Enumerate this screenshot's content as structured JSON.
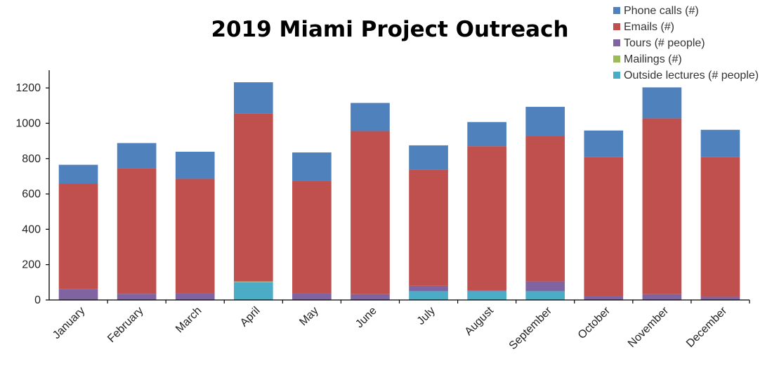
{
  "chart_data": {
    "type": "bar",
    "stacked": true,
    "title": "2019 Miami Project Outreach",
    "xlabel": "",
    "ylabel": "",
    "ylim": [
      0,
      1300
    ],
    "yticks": [
      0,
      200,
      400,
      600,
      800,
      1000,
      1200
    ],
    "grid": false,
    "legend_position": "top-right",
    "categories": [
      "January",
      "February",
      "March",
      "April",
      "May",
      "June",
      "July",
      "August",
      "September",
      "October",
      "November",
      "December"
    ],
    "series": [
      {
        "name": "Outside lectures (# people)",
        "color": "#4bacc6",
        "values": [
          0,
          0,
          0,
          100,
          0,
          0,
          50,
          50,
          50,
          0,
          0,
          0
        ]
      },
      {
        "name": "Mailings (#)",
        "color": "#9bbb59",
        "values": [
          0,
          0,
          0,
          5,
          0,
          0,
          0,
          0,
          0,
          0,
          0,
          0
        ]
      },
      {
        "name": "Tours (# people)",
        "color": "#8064a2",
        "values": [
          63,
          35,
          38,
          0,
          38,
          33,
          30,
          5,
          55,
          20,
          33,
          18
        ]
      },
      {
        "name": "Emails (#)",
        "color": "#c0504d",
        "values": [
          595,
          710,
          648,
          950,
          634,
          923,
          658,
          815,
          825,
          790,
          995,
          792
        ]
      },
      {
        "name": "Phone calls (#)",
        "color": "#4f81bd",
        "values": [
          107,
          143,
          153,
          177,
          163,
          159,
          137,
          137,
          163,
          149,
          175,
          153
        ]
      }
    ],
    "legend_order": [
      "Phone calls (#)",
      "Emails (#)",
      "Tours (# people)",
      "Mailings (#)",
      "Outside lectures (# people)"
    ]
  }
}
